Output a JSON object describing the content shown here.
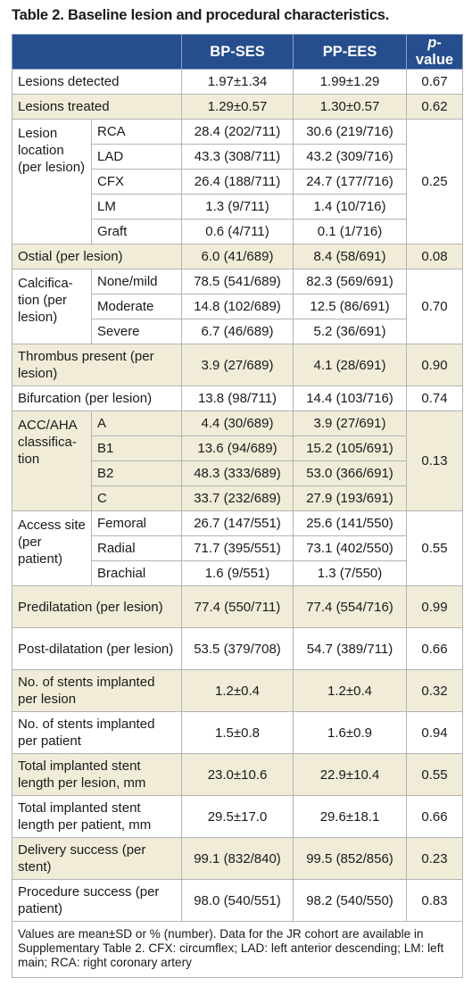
{
  "title": "Table 2. Baseline lesion and procedural characteristics.",
  "header": {
    "col2": "BP-SES",
    "col3": "PP-EES",
    "pvalue_italic": "p",
    "pvalue_rest": "-value"
  },
  "rows": {
    "lesions_detected": {
      "label": "Lesions detected",
      "bp": "1.97±1.34",
      "pp": "1.99±1.29",
      "p": "0.67"
    },
    "lesions_treated": {
      "label": "Lesions treated",
      "bp": "1.29±0.57",
      "pp": "1.30±0.57",
      "p": "0.62"
    },
    "location": {
      "label": "Lesion location (per lesion)",
      "p": "0.25",
      "items": [
        {
          "sub": "RCA",
          "bp": "28.4 (202/711)",
          "pp": "30.6 (219/716)"
        },
        {
          "sub": "LAD",
          "bp": "43.3 (308/711)",
          "pp": "43.2 (309/716)"
        },
        {
          "sub": "CFX",
          "bp": "26.4 (188/711)",
          "pp": "24.7 (177/716)"
        },
        {
          "sub": "LM",
          "bp": "1.3 (9/711)",
          "pp": "1.4 (10/716)"
        },
        {
          "sub": "Graft",
          "bp": "0.6 (4/711)",
          "pp": "0.1 (1/716)"
        }
      ]
    },
    "ostial": {
      "label": "Ostial (per lesion)",
      "bp": "6.0 (41/689)",
      "pp": "8.4 (58/691)",
      "p": "0.08"
    },
    "calcification": {
      "label": "Calcifica-tion (per lesion)",
      "p": "0.70",
      "items": [
        {
          "sub": "None/mild",
          "bp": "78.5 (541/689)",
          "pp": "82.3 (569/691)"
        },
        {
          "sub": "Moderate",
          "bp": "14.8 (102/689)",
          "pp": "12.5 (86/691)"
        },
        {
          "sub": "Severe",
          "bp": "6.7 (46/689)",
          "pp": "5.2 (36/691)"
        }
      ]
    },
    "thrombus": {
      "label": "Thrombus present (per lesion)",
      "bp": "3.9 (27/689)",
      "pp": "4.1 (28/691)",
      "p": "0.90"
    },
    "bifurcation": {
      "label": "Bifurcation (per lesion)",
      "bp": "13.8 (98/711)",
      "pp": "14.4 (103/716)",
      "p": "0.74"
    },
    "acc_aha": {
      "label": "ACC/AHA classifica-tion",
      "p": "0.13",
      "items": [
        {
          "sub": "A",
          "bp": "4.4 (30/689)",
          "pp": "3.9 (27/691)"
        },
        {
          "sub": "B1",
          "bp": "13.6 (94/689)",
          "pp": "15.2 (105/691)"
        },
        {
          "sub": "B2",
          "bp": "48.3 (333/689)",
          "pp": "53.0 (366/691)"
        },
        {
          "sub": "C",
          "bp": "33.7 (232/689)",
          "pp": "27.9 (193/691)"
        }
      ]
    },
    "access": {
      "label": "Access site (per patient)",
      "p": "0.55",
      "items": [
        {
          "sub": "Femoral",
          "bp": "26.7 (147/551)",
          "pp": "25.6 (141/550)"
        },
        {
          "sub": "Radial",
          "bp": "71.7 (395/551)",
          "pp": "73.1 (402/550)"
        },
        {
          "sub": "Brachial",
          "bp": "1.6 (9/551)",
          "pp": "1.3 (7/550)"
        }
      ]
    },
    "predilatation": {
      "label": "Predilatation (per lesion)",
      "bp": "77.4 (550/711)",
      "pp": "77.4 (554/716)",
      "p": "0.99"
    },
    "postdilatation": {
      "label": "Post-dilatation (per lesion)",
      "bp": "53.5 (379/708)",
      "pp": "54.7 (389/711)",
      "p": "0.66"
    },
    "stents_lesion": {
      "label": "No. of stents implanted per lesion",
      "bp": "1.2±0.4",
      "pp": "1.2±0.4",
      "p": "0.32"
    },
    "stents_patient": {
      "label": "No. of stents implanted per patient",
      "bp": "1.5±0.8",
      "pp": "1.6±0.9",
      "p": "0.94"
    },
    "length_lesion": {
      "label": "Total implanted stent length per lesion, mm",
      "bp": "23.0±10.6",
      "pp": "22.9±10.4",
      "p": "0.55"
    },
    "length_patient": {
      "label": "Total implanted stent length per patient, mm",
      "bp": "29.5±17.0",
      "pp": "29.6±18.1",
      "p": "0.66"
    },
    "delivery": {
      "label": "Delivery success (per stent)",
      "bp": "99.1 (832/840)",
      "pp": "99.5 (852/856)",
      "p": "0.23"
    },
    "procedure": {
      "label": "Procedure success (per patient)",
      "bp": "98.0 (540/551)",
      "pp": "98.2 (540/550)",
      "p": "0.83"
    }
  },
  "footnote": "Values are mean±SD or % (number). Data for the JR cohort are available in Supplementary Table 2. CFX: circumflex; LAD: left anterior descending; LM: left main; RCA: right coronary artery",
  "colors": {
    "header_bg": "#264e8e",
    "shaded_row": "#f0ecd8",
    "border": "#b3b3b3"
  }
}
